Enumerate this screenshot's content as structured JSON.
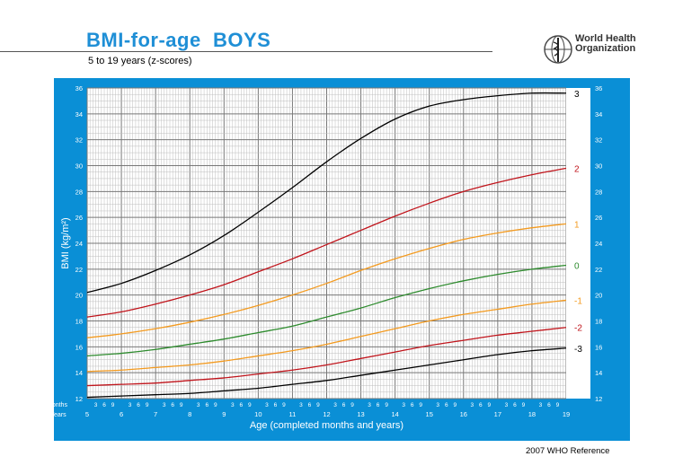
{
  "header": {
    "title": "BMI-for-age  BOYS",
    "subtitle": "5 to 19 years (z-scores)",
    "org_line1": "World Health",
    "org_line2": "Organization",
    "reference": "2007  WHO Reference"
  },
  "colors": {
    "frame": "#0a8fd6",
    "title": "#1f8fd6",
    "z0": "#2e8b2e",
    "z1": "#f39a1f",
    "z2": "#c0141b",
    "z3": "#000000"
  },
  "chart_data": {
    "type": "line",
    "xlabel": "Age (completed months and years)",
    "ylabel": "BMI (kg/m²)",
    "xlim": [
      5,
      19
    ],
    "ylim": [
      12,
      36
    ],
    "x_ticks": [
      "5",
      "6",
      "7",
      "8",
      "9",
      "10",
      "11",
      "12",
      "13",
      "14",
      "15",
      "16",
      "17",
      "18",
      "19"
    ],
    "y_ticks": [
      "12",
      "14",
      "16",
      "18",
      "20",
      "22",
      "24",
      "26",
      "28",
      "30",
      "32",
      "34",
      "36"
    ],
    "months_row_label": "Months",
    "years_row_label": "Years",
    "month_ticks": [
      "3",
      "6",
      "9"
    ],
    "grid": true,
    "x": [
      5,
      6,
      7,
      8,
      9,
      10,
      11,
      12,
      13,
      14,
      15,
      16,
      17,
      18,
      19
    ],
    "series": [
      {
        "name": "3",
        "color": "#000000",
        "values": [
          20.2,
          20.9,
          21.9,
          23.1,
          24.6,
          26.4,
          28.3,
          30.3,
          32.1,
          33.6,
          34.6,
          35.1,
          35.4,
          35.6,
          35.6
        ]
      },
      {
        "name": "2",
        "color": "#c0141b",
        "values": [
          18.3,
          18.7,
          19.3,
          20.0,
          20.8,
          21.8,
          22.8,
          23.9,
          25.0,
          26.1,
          27.1,
          28.0,
          28.7,
          29.3,
          29.8
        ]
      },
      {
        "name": "1",
        "color": "#f39a1f",
        "values": [
          16.7,
          17.0,
          17.4,
          17.9,
          18.5,
          19.2,
          20.0,
          20.9,
          21.9,
          22.8,
          23.6,
          24.3,
          24.8,
          25.2,
          25.5
        ]
      },
      {
        "name": "0",
        "color": "#2e8b2e",
        "values": [
          15.3,
          15.5,
          15.8,
          16.2,
          16.6,
          17.1,
          17.6,
          18.3,
          19.0,
          19.8,
          20.5,
          21.1,
          21.6,
          22.0,
          22.3
        ]
      },
      {
        "name": "-1",
        "color": "#f39a1f",
        "values": [
          14.1,
          14.2,
          14.4,
          14.6,
          14.9,
          15.3,
          15.7,
          16.2,
          16.8,
          17.4,
          18.0,
          18.5,
          18.9,
          19.3,
          19.6
        ]
      },
      {
        "name": "-2",
        "color": "#c0141b",
        "values": [
          13.0,
          13.1,
          13.2,
          13.4,
          13.6,
          13.9,
          14.2,
          14.6,
          15.1,
          15.6,
          16.1,
          16.5,
          16.9,
          17.2,
          17.5
        ]
      },
      {
        "name": "-3",
        "color": "#000000",
        "values": [
          12.1,
          12.2,
          12.3,
          12.4,
          12.6,
          12.8,
          13.1,
          13.4,
          13.8,
          14.2,
          14.6,
          15.0,
          15.4,
          15.7,
          15.9
        ]
      }
    ]
  }
}
